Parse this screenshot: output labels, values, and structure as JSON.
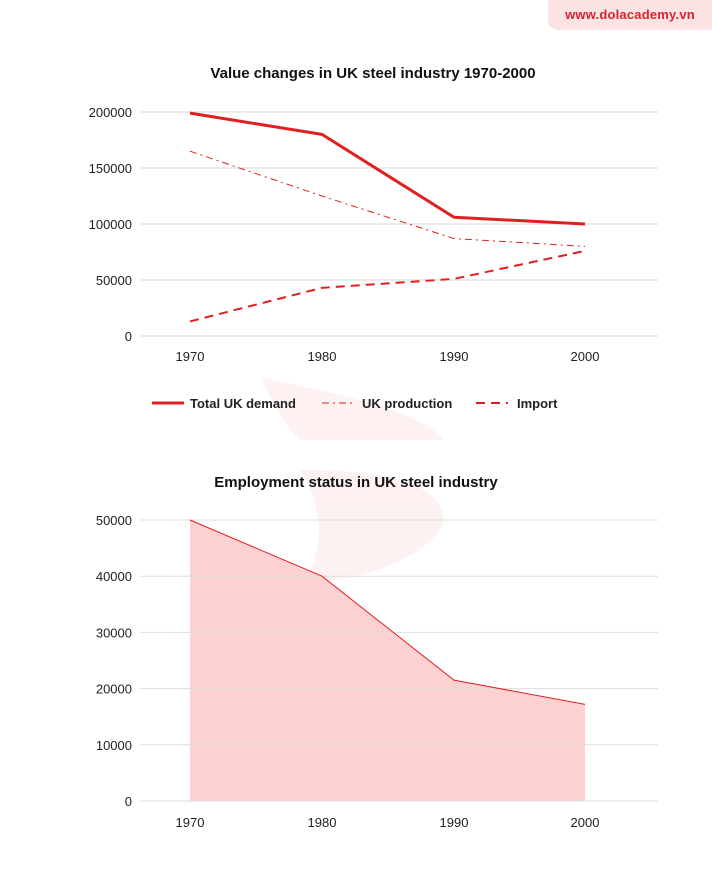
{
  "watermark": {
    "text": "www.dolacademy.vn"
  },
  "colors": {
    "accent": "#e02020",
    "area_fill": "#fdd1d1",
    "grid": "#d9d9d9"
  },
  "chart_data": [
    {
      "type": "line",
      "title": "Value changes in UK steel industry 1970-2000",
      "categories": [
        "1970",
        "1980",
        "1990",
        "2000"
      ],
      "ylim": [
        0,
        200000
      ],
      "yticks": [
        "0",
        "50000",
        "100000",
        "150000",
        "200000"
      ],
      "xlabel": "",
      "ylabel": "",
      "legend_position": "bottom",
      "series": [
        {
          "name": "Total UK demand",
          "values": [
            199000,
            180000,
            106000,
            100000
          ],
          "style": "solid"
        },
        {
          "name": "UK production",
          "values": [
            165000,
            125000,
            87000,
            80000
          ],
          "style": "dashdot"
        },
        {
          "name": "Import",
          "values": [
            13000,
            43000,
            51000,
            76000
          ],
          "style": "dashed"
        }
      ]
    },
    {
      "type": "area",
      "title": "Employment status in UK steel industry",
      "categories": [
        "1970",
        "1980",
        "1990",
        "2000"
      ],
      "ylim": [
        0,
        50000
      ],
      "yticks": [
        "0",
        "10000",
        "20000",
        "30000",
        "40000",
        "50000"
      ],
      "xlabel": "",
      "ylabel": "",
      "series": [
        {
          "name": "Employment",
          "values": [
            50000,
            40000,
            21500,
            17200
          ]
        }
      ]
    }
  ]
}
